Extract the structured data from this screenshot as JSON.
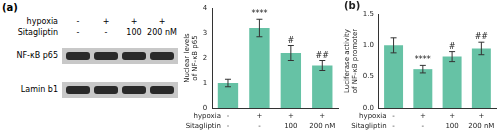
{
  "blot": {
    "panel_label": "(a)",
    "row_labels": [
      "hypoxia",
      "Sitagliptin"
    ],
    "lanes": [
      [
        "-",
        "-"
      ],
      [
        "+",
        "-"
      ],
      [
        "+",
        "100"
      ],
      [
        "+",
        "200 nM"
      ]
    ],
    "bands": [
      "NF-κB p65",
      "Lamin b1"
    ]
  },
  "chart_data": [
    {
      "type": "bar",
      "y_label": [
        "Nuclear levels",
        "of NF-κB p65"
      ],
      "row_labels": [
        "hypoxia",
        "Sitagliptin"
      ],
      "categories": [
        [
          "-",
          "-"
        ],
        [
          "+",
          "-"
        ],
        [
          "+",
          "100"
        ],
        [
          "+",
          "200 nM"
        ]
      ],
      "values": [
        1.0,
        3.2,
        2.2,
        1.7
      ],
      "errors": [
        0.15,
        0.35,
        0.3,
        0.2
      ],
      "annotations": [
        null,
        "****",
        "#",
        "##"
      ],
      "color": "#66c2a5",
      "ylim": [
        0,
        4
      ],
      "yticks": [
        0,
        1,
        2,
        3,
        4
      ],
      "grid": false
    },
    {
      "type": "bar",
      "panel_label": "(b)",
      "y_label": [
        "Luciferase activity",
        "of NF-κB promoter"
      ],
      "row_labels": [
        "hypoxia",
        "Sitagliptin"
      ],
      "categories": [
        [
          "-",
          "-"
        ],
        [
          "+",
          "-"
        ],
        [
          "+",
          "100"
        ],
        [
          "+",
          "200 nM"
        ]
      ],
      "values": [
        1.0,
        0.62,
        0.82,
        0.95
      ],
      "errors": [
        0.12,
        0.06,
        0.08,
        0.1
      ],
      "annotations": [
        null,
        "****",
        "#",
        "##"
      ],
      "color": "#66c2a5",
      "ylim": [
        0,
        1.5
      ],
      "yticks": [
        {
          "value": 0,
          "label": "0.0"
        },
        {
          "value": 0.5,
          "label": "0.5"
        },
        {
          "value": 1,
          "label": "1.0"
        },
        {
          "value": 1.5,
          "label": "1.5"
        }
      ],
      "grid": false
    }
  ]
}
